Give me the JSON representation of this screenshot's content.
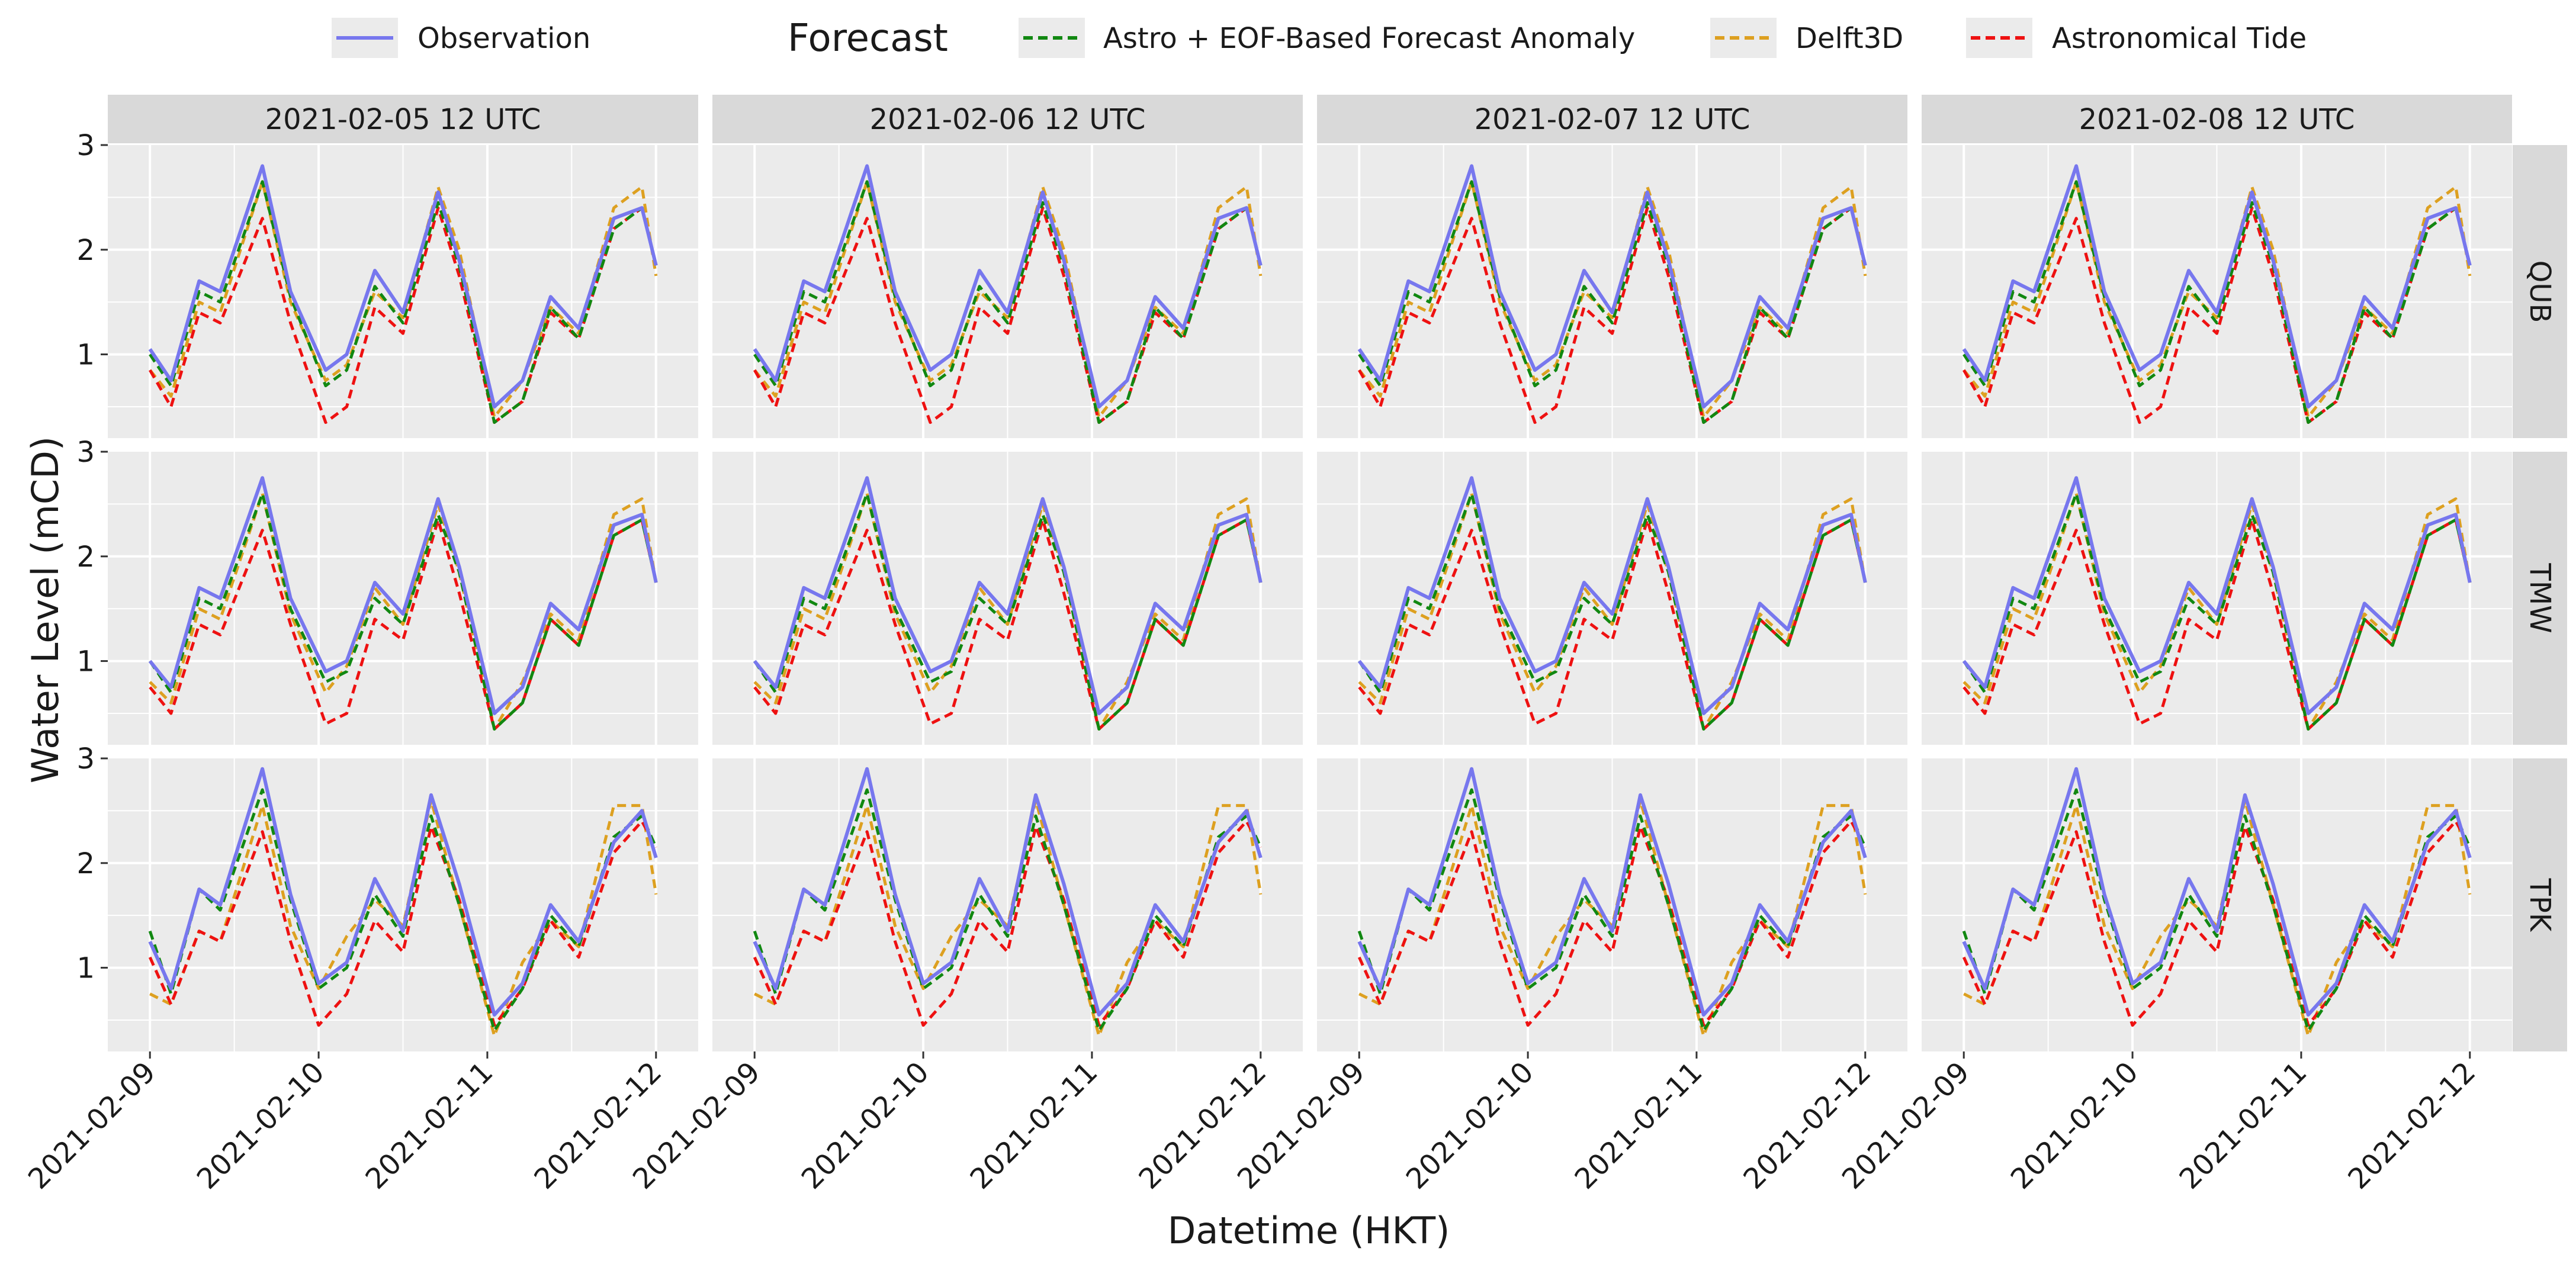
{
  "chart_data": {
    "type": "line",
    "facet_columns": [
      "2021-02-05 12 UTC",
      "2021-02-06 12 UTC",
      "2021-02-07 12 UTC",
      "2021-02-08 12 UTC"
    ],
    "facet_rows": [
      "QUB",
      "TMW",
      "TPK"
    ],
    "xlabel": "Datetime (HKT)",
    "ylabel": "Water Level (mCD)",
    "x_range_hours": [
      -6,
      78
    ],
    "x_ticks": [
      {
        "hour": 0,
        "label": "2021-02-09"
      },
      {
        "hour": 24,
        "label": "2021-02-10"
      },
      {
        "hour": 48,
        "label": "2021-02-11"
      },
      {
        "hour": 72,
        "label": "2021-02-12"
      }
    ],
    "ylim": [
      0.2,
      3.0
    ],
    "y_ticks": [
      1,
      2,
      3
    ],
    "legend": {
      "position": "top",
      "items": [
        {
          "key": "obs",
          "label": "Observation",
          "color": "#7777ee",
          "dash": "solid"
        },
        {
          "key": "title",
          "label": "Forecast"
        },
        {
          "key": "eof",
          "label": "Astro + EOF-Based Forecast Anomaly",
          "color": "#118811",
          "dash": "dashed"
        },
        {
          "key": "delft",
          "label": "Delft3D",
          "color": "#dda020",
          "dash": "dashed"
        },
        {
          "key": "astro",
          "label": "Astronomical Tide",
          "color": "#ee1111",
          "dash": "dashed"
        }
      ]
    },
    "stations": {
      "QUB": {
        "hours": [
          0,
          3,
          7,
          10,
          16,
          20,
          25,
          28,
          32,
          36,
          41,
          44,
          49,
          53,
          57,
          61,
          66,
          70,
          72
        ],
        "obs": [
          1.05,
          0.75,
          1.7,
          1.6,
          2.8,
          1.6,
          0.85,
          1.0,
          1.8,
          1.4,
          2.55,
          1.9,
          0.5,
          0.75,
          1.55,
          1.25,
          2.3,
          2.4,
          1.85
        ],
        "eof": [
          1.0,
          0.7,
          1.6,
          1.5,
          2.65,
          1.55,
          0.7,
          0.85,
          1.65,
          1.3,
          2.45,
          1.85,
          0.35,
          0.55,
          1.45,
          1.15,
          2.2,
          2.4,
          1.85
        ],
        "delft": [
          0.85,
          0.6,
          1.5,
          1.4,
          2.65,
          1.5,
          0.75,
          0.9,
          1.6,
          1.35,
          2.6,
          2.0,
          0.4,
          0.75,
          1.45,
          1.2,
          2.4,
          2.6,
          1.75
        ],
        "astro": [
          0.85,
          0.5,
          1.4,
          1.3,
          2.3,
          1.3,
          0.35,
          0.5,
          1.45,
          1.2,
          2.4,
          1.75,
          0.35,
          0.55,
          1.4,
          1.15,
          2.2,
          2.4,
          1.85
        ]
      },
      "TMW": {
        "hours": [
          0,
          3,
          7,
          10,
          16,
          20,
          25,
          28,
          32,
          36,
          41,
          44,
          49,
          53,
          57,
          61,
          66,
          70,
          72
        ],
        "obs": [
          1.0,
          0.75,
          1.7,
          1.6,
          2.75,
          1.6,
          0.9,
          1.0,
          1.75,
          1.45,
          2.55,
          1.9,
          0.5,
          0.75,
          1.55,
          1.3,
          2.3,
          2.4,
          1.75
        ],
        "eof": [
          1.0,
          0.7,
          1.6,
          1.5,
          2.6,
          1.5,
          0.8,
          0.9,
          1.6,
          1.35,
          2.4,
          1.85,
          0.35,
          0.6,
          1.4,
          1.15,
          2.2,
          2.35,
          1.75
        ],
        "delft": [
          0.8,
          0.6,
          1.5,
          1.4,
          2.6,
          1.45,
          0.7,
          0.95,
          1.7,
          1.35,
          2.5,
          1.85,
          0.35,
          0.8,
          1.45,
          1.2,
          2.4,
          2.55,
          1.75
        ],
        "astro": [
          0.75,
          0.5,
          1.35,
          1.25,
          2.25,
          1.35,
          0.4,
          0.5,
          1.4,
          1.2,
          2.35,
          1.65,
          0.35,
          0.6,
          1.4,
          1.15,
          2.2,
          2.35,
          1.75
        ]
      },
      "TPK": {
        "hours": [
          0,
          3,
          7,
          10,
          16,
          20,
          24,
          28,
          32,
          36,
          40,
          44,
          49,
          53,
          57,
          61,
          66,
          70,
          72
        ],
        "obs": [
          1.25,
          0.8,
          1.75,
          1.6,
          2.9,
          1.7,
          0.85,
          1.05,
          1.85,
          1.35,
          2.65,
          1.8,
          0.55,
          0.85,
          1.6,
          1.25,
          2.2,
          2.5,
          2.05
        ],
        "eof": [
          1.35,
          0.75,
          1.75,
          1.55,
          2.7,
          1.65,
          0.8,
          1.0,
          1.7,
          1.3,
          2.45,
          1.6,
          0.4,
          0.8,
          1.5,
          1.2,
          2.25,
          2.45,
          2.15
        ],
        "delft": [
          0.75,
          0.65,
          1.35,
          1.25,
          2.55,
          1.4,
          0.8,
          1.3,
          1.65,
          1.4,
          2.6,
          1.6,
          0.35,
          1.05,
          1.45,
          1.2,
          2.55,
          2.55,
          1.7
        ],
        "astro": [
          1.1,
          0.65,
          1.35,
          1.25,
          2.3,
          1.25,
          0.45,
          0.75,
          1.45,
          1.15,
          2.35,
          1.65,
          0.45,
          0.8,
          1.45,
          1.1,
          2.1,
          2.4,
          2.15
        ]
      }
    }
  }
}
